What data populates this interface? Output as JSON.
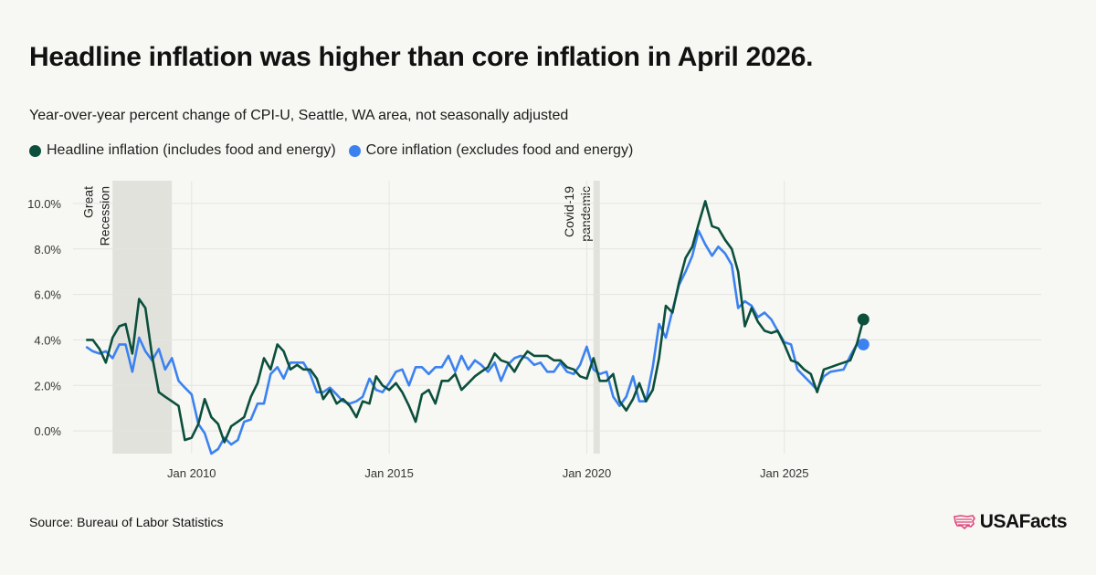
{
  "header": {
    "title": "Headline inflation was higher than core inflation in April 2026.",
    "subtitle": "Year-over-year percent change of CPI-U, Seattle, WA area, not seasonally adjusted"
  },
  "legend": [
    {
      "label": "Headline inflation (includes food and energy)",
      "color": "#0b4f3c"
    },
    {
      "label": "Core inflation (excludes food and energy)",
      "color": "#3b82f0"
    }
  ],
  "footer": {
    "source": "Source: Bureau of Labor Statistics",
    "logo_text": "USAFacts"
  },
  "chart_data": {
    "type": "line",
    "x_unit": "years",
    "xlim": [
      2007.0,
      2031.5
    ],
    "ylim": [
      -1.0,
      11.0
    ],
    "y_ticks": [
      0,
      2,
      4,
      6,
      8,
      10
    ],
    "y_tick_labels": [
      "0.0%",
      "2.0%",
      "4.0%",
      "6.0%",
      "8.0%",
      "10.0%"
    ],
    "x_ticks": [
      2010,
      2015,
      2020,
      2025
    ],
    "x_tick_labels": [
      "Jan 2010",
      "Jan 2015",
      "Jan 2020",
      "Jan 2025"
    ],
    "grid": true,
    "legend_position": "top-left",
    "shaded_periods": [
      {
        "label": [
          "Great",
          "Recession"
        ],
        "start": 2008.0,
        "end": 2009.5
      },
      {
        "label": [
          "Covid-19",
          "pandemic"
        ],
        "start": 2020.17,
        "end": 2020.33
      }
    ],
    "series": [
      {
        "name": "Headline inflation (includes food and energy)",
        "color": "#0b4f3c",
        "points": [
          [
            2007.33,
            4.0
          ],
          [
            2007.5,
            4.0
          ],
          [
            2007.67,
            3.6
          ],
          [
            2007.83,
            3.0
          ],
          [
            2008.0,
            4.1
          ],
          [
            2008.17,
            4.6
          ],
          [
            2008.33,
            4.7
          ],
          [
            2008.5,
            3.4
          ],
          [
            2008.67,
            5.8
          ],
          [
            2008.83,
            5.4
          ],
          [
            2009.0,
            3.3
          ],
          [
            2009.17,
            1.7
          ],
          [
            2009.33,
            1.5
          ],
          [
            2009.5,
            1.3
          ],
          [
            2009.67,
            1.1
          ],
          [
            2009.83,
            -0.4
          ],
          [
            2010.0,
            -0.3
          ],
          [
            2010.17,
            0.3
          ],
          [
            2010.33,
            1.4
          ],
          [
            2010.5,
            0.6
          ],
          [
            2010.67,
            0.3
          ],
          [
            2010.83,
            -0.5
          ],
          [
            2011.0,
            0.2
          ],
          [
            2011.17,
            0.4
          ],
          [
            2011.33,
            0.6
          ],
          [
            2011.5,
            1.5
          ],
          [
            2011.67,
            2.1
          ],
          [
            2011.83,
            3.2
          ],
          [
            2012.0,
            2.7
          ],
          [
            2012.17,
            3.8
          ],
          [
            2012.33,
            3.5
          ],
          [
            2012.5,
            2.7
          ],
          [
            2012.67,
            2.9
          ],
          [
            2012.83,
            2.7
          ],
          [
            2013.0,
            2.7
          ],
          [
            2013.17,
            2.3
          ],
          [
            2013.33,
            1.4
          ],
          [
            2013.5,
            1.8
          ],
          [
            2013.67,
            1.2
          ],
          [
            2013.83,
            1.4
          ],
          [
            2014.0,
            1.1
          ],
          [
            2014.17,
            0.6
          ],
          [
            2014.33,
            1.3
          ],
          [
            2014.5,
            1.2
          ],
          [
            2014.67,
            2.4
          ],
          [
            2014.83,
            2.0
          ],
          [
            2015.0,
            1.8
          ],
          [
            2015.17,
            2.1
          ],
          [
            2015.33,
            1.7
          ],
          [
            2015.5,
            1.1
          ],
          [
            2015.67,
            0.4
          ],
          [
            2015.83,
            1.6
          ],
          [
            2016.0,
            1.8
          ],
          [
            2016.17,
            1.2
          ],
          [
            2016.33,
            2.2
          ],
          [
            2016.5,
            2.2
          ],
          [
            2016.67,
            2.5
          ],
          [
            2016.83,
            1.8
          ],
          [
            2017.0,
            2.1
          ],
          [
            2017.17,
            2.4
          ],
          [
            2017.33,
            2.6
          ],
          [
            2017.5,
            2.8
          ],
          [
            2017.67,
            3.4
          ],
          [
            2017.83,
            3.1
          ],
          [
            2018.0,
            3.0
          ],
          [
            2018.17,
            2.6
          ],
          [
            2018.33,
            3.1
          ],
          [
            2018.5,
            3.5
          ],
          [
            2018.67,
            3.3
          ],
          [
            2018.83,
            3.3
          ],
          [
            2019.0,
            3.3
          ],
          [
            2019.17,
            3.1
          ],
          [
            2019.33,
            3.1
          ],
          [
            2019.5,
            2.8
          ],
          [
            2019.67,
            2.7
          ],
          [
            2019.83,
            2.4
          ],
          [
            2020.0,
            2.3
          ],
          [
            2020.17,
            3.2
          ],
          [
            2020.33,
            2.2
          ],
          [
            2020.5,
            2.2
          ],
          [
            2020.67,
            2.5
          ],
          [
            2020.83,
            1.3
          ],
          [
            2021.0,
            0.9
          ],
          [
            2021.17,
            1.4
          ],
          [
            2021.33,
            2.1
          ],
          [
            2021.5,
            1.3
          ],
          [
            2021.67,
            1.8
          ],
          [
            2021.83,
            3.2
          ],
          [
            2022.0,
            5.5
          ],
          [
            2022.17,
            5.2
          ],
          [
            2022.33,
            6.5
          ],
          [
            2022.5,
            7.6
          ],
          [
            2022.67,
            8.1
          ],
          [
            2022.83,
            9.1
          ],
          [
            2023.0,
            10.1
          ],
          [
            2023.17,
            9.0
          ],
          [
            2023.33,
            8.9
          ],
          [
            2023.5,
            8.4
          ],
          [
            2023.67,
            8.0
          ],
          [
            2023.83,
            7.0
          ],
          [
            2024.0,
            4.6
          ],
          [
            2024.17,
            5.4
          ],
          [
            2024.33,
            4.8
          ],
          [
            2024.5,
            4.4
          ],
          [
            2024.67,
            4.3
          ],
          [
            2024.83,
            4.4
          ],
          [
            2025.0,
            3.8
          ],
          [
            2025.17,
            3.1
          ],
          [
            2025.33,
            3.0
          ],
          [
            2025.5,
            2.7
          ],
          [
            2025.67,
            2.5
          ],
          [
            2025.83,
            1.7
          ],
          [
            2026.0,
            2.7
          ],
          [
            2026.17,
            2.8
          ],
          [
            2026.33,
            2.9
          ],
          [
            2026.5,
            3.0
          ],
          [
            2026.67,
            3.1
          ],
          [
            2026.83,
            3.8
          ],
          [
            2027.0,
            4.9
          ]
        ]
      },
      {
        "name": "Core inflation (excludes food and energy)",
        "color": "#3b82f0",
        "points": [
          [
            2007.33,
            3.7
          ],
          [
            2007.5,
            3.5
          ],
          [
            2007.67,
            3.4
          ],
          [
            2007.83,
            3.5
          ],
          [
            2008.0,
            3.2
          ],
          [
            2008.17,
            3.8
          ],
          [
            2008.33,
            3.8
          ],
          [
            2008.5,
            2.6
          ],
          [
            2008.67,
            4.1
          ],
          [
            2008.83,
            3.5
          ],
          [
            2009.0,
            3.1
          ],
          [
            2009.17,
            3.6
          ],
          [
            2009.33,
            2.7
          ],
          [
            2009.5,
            3.2
          ],
          [
            2009.67,
            2.2
          ],
          [
            2009.83,
            1.9
          ],
          [
            2010.0,
            1.6
          ],
          [
            2010.17,
            0.3
          ],
          [
            2010.33,
            -0.1
          ],
          [
            2010.5,
            -1.0
          ],
          [
            2010.67,
            -0.8
          ],
          [
            2010.83,
            -0.3
          ],
          [
            2011.0,
            -0.6
          ],
          [
            2011.17,
            -0.4
          ],
          [
            2011.33,
            0.4
          ],
          [
            2011.5,
            0.5
          ],
          [
            2011.67,
            1.2
          ],
          [
            2011.83,
            1.2
          ],
          [
            2012.0,
            2.5
          ],
          [
            2012.17,
            2.8
          ],
          [
            2012.33,
            2.3
          ],
          [
            2012.5,
            3.0
          ],
          [
            2012.67,
            3.0
          ],
          [
            2012.83,
            3.0
          ],
          [
            2013.0,
            2.5
          ],
          [
            2013.17,
            1.7
          ],
          [
            2013.33,
            1.7
          ],
          [
            2013.5,
            1.9
          ],
          [
            2013.67,
            1.6
          ],
          [
            2013.83,
            1.3
          ],
          [
            2014.0,
            1.2
          ],
          [
            2014.17,
            1.3
          ],
          [
            2014.33,
            1.5
          ],
          [
            2014.5,
            2.3
          ],
          [
            2014.67,
            1.8
          ],
          [
            2014.83,
            1.7
          ],
          [
            2015.0,
            2.1
          ],
          [
            2015.17,
            2.6
          ],
          [
            2015.33,
            2.7
          ],
          [
            2015.5,
            2.0
          ],
          [
            2015.67,
            2.8
          ],
          [
            2015.83,
            2.8
          ],
          [
            2016.0,
            2.5
          ],
          [
            2016.17,
            2.8
          ],
          [
            2016.33,
            2.8
          ],
          [
            2016.5,
            3.3
          ],
          [
            2016.67,
            2.6
          ],
          [
            2016.83,
            3.3
          ],
          [
            2017.0,
            2.7
          ],
          [
            2017.17,
            3.1
          ],
          [
            2017.33,
            2.9
          ],
          [
            2017.5,
            2.6
          ],
          [
            2017.67,
            3.0
          ],
          [
            2017.83,
            2.2
          ],
          [
            2018.0,
            2.9
          ],
          [
            2018.17,
            3.2
          ],
          [
            2018.33,
            3.3
          ],
          [
            2018.5,
            3.2
          ],
          [
            2018.67,
            2.9
          ],
          [
            2018.83,
            3.0
          ],
          [
            2019.0,
            2.6
          ],
          [
            2019.17,
            2.6
          ],
          [
            2019.33,
            3.0
          ],
          [
            2019.5,
            2.6
          ],
          [
            2019.67,
            2.5
          ],
          [
            2019.83,
            2.9
          ],
          [
            2020.0,
            3.7
          ],
          [
            2020.17,
            2.7
          ],
          [
            2020.33,
            2.5
          ],
          [
            2020.5,
            2.6
          ],
          [
            2020.67,
            1.5
          ],
          [
            2020.83,
            1.1
          ],
          [
            2021.0,
            1.5
          ],
          [
            2021.17,
            2.4
          ],
          [
            2021.33,
            1.3
          ],
          [
            2021.5,
            1.3
          ],
          [
            2021.67,
            2.8
          ],
          [
            2021.83,
            4.7
          ],
          [
            2022.0,
            4.1
          ],
          [
            2022.17,
            5.3
          ],
          [
            2022.33,
            6.4
          ],
          [
            2022.5,
            7.0
          ],
          [
            2022.67,
            7.7
          ],
          [
            2022.83,
            8.8
          ],
          [
            2023.0,
            8.2
          ],
          [
            2023.17,
            7.7
          ],
          [
            2023.33,
            8.1
          ],
          [
            2023.5,
            7.8
          ],
          [
            2023.67,
            7.3
          ],
          [
            2023.83,
            5.4
          ],
          [
            2024.0,
            5.7
          ],
          [
            2024.17,
            5.5
          ],
          [
            2024.33,
            5.0
          ],
          [
            2024.5,
            5.2
          ],
          [
            2024.67,
            4.9
          ],
          [
            2024.83,
            4.4
          ],
          [
            2025.0,
            3.9
          ],
          [
            2025.17,
            3.8
          ],
          [
            2025.33,
            2.7
          ],
          [
            2025.5,
            2.4
          ],
          [
            2025.67,
            2.1
          ],
          [
            2025.83,
            1.8
          ],
          [
            2026.0,
            2.4
          ],
          [
            2026.17,
            2.6
          ],
          [
            2026.33,
            2.65
          ],
          [
            2026.5,
            2.7
          ],
          [
            2026.67,
            3.3
          ],
          [
            2026.83,
            3.8
          ],
          [
            2027.0,
            3.8
          ]
        ]
      }
    ]
  }
}
